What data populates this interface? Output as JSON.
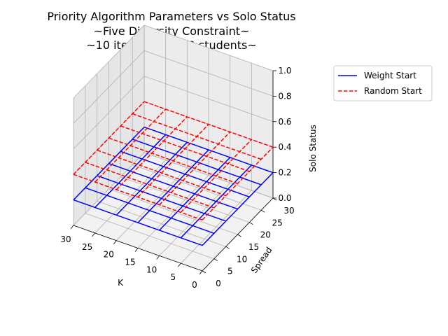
{
  "figure": {
    "title_lines": [
      "Priority Algorithm Parameters vs Solo Status",
      "~Five Diversity Constraint~",
      "~10 iterations, 120 students~"
    ]
  },
  "chart_data": {
    "type": "wireframe-3d",
    "title": "Priority Algorithm Parameters vs Solo Status\n~Five Diversity Constraint~\n~10 iterations, 120 students~",
    "xlabel": "K",
    "ylabel": "Spread",
    "zlabel": "Solo Status",
    "xlim": [
      0,
      30
    ],
    "ylim": [
      0,
      30
    ],
    "zlim": [
      0,
      1
    ],
    "xticks": [
      "0",
      "5",
      "10",
      "15",
      "20",
      "25",
      "30"
    ],
    "yticks": [
      "0",
      "5",
      "10",
      "15",
      "20",
      "25",
      "30"
    ],
    "zticks": [
      "0.0",
      "0.2",
      "0.4",
      "0.6",
      "0.8",
      "1.0"
    ],
    "grid": true,
    "legend_position": "outside-top-right",
    "x": [
      0,
      5,
      10,
      15,
      20,
      25,
      30
    ],
    "y": [
      0,
      5,
      10,
      15,
      20,
      25,
      30
    ],
    "series": [
      {
        "name": "Weight Start",
        "color": "#0000ff",
        "linestyle": "solid",
        "z": [
          [
            0.2,
            0.2,
            0.2,
            0.2,
            0.2,
            0.2,
            0.2
          ],
          [
            0.2,
            0.2,
            0.2,
            0.2,
            0.2,
            0.2,
            0.2
          ],
          [
            0.2,
            0.2,
            0.2,
            0.2,
            0.2,
            0.2,
            0.2
          ],
          [
            0.2,
            0.2,
            0.2,
            0.2,
            0.2,
            0.2,
            0.2
          ],
          [
            0.2,
            0.2,
            0.2,
            0.2,
            0.2,
            0.2,
            0.2
          ],
          [
            0.2,
            0.2,
            0.2,
            0.2,
            0.2,
            0.2,
            0.2
          ],
          [
            0.2,
            0.2,
            0.2,
            0.2,
            0.2,
            0.2,
            0.2
          ]
        ]
      },
      {
        "name": "Random Start",
        "color": "#ff0000",
        "linestyle": "dashed",
        "z": [
          [
            0.4,
            0.4,
            0.4,
            0.4,
            0.4,
            0.4,
            0.4
          ],
          [
            0.4,
            0.4,
            0.4,
            0.4,
            0.4,
            0.4,
            0.4
          ],
          [
            0.4,
            0.4,
            0.4,
            0.4,
            0.4,
            0.4,
            0.4
          ],
          [
            0.4,
            0.4,
            0.4,
            0.4,
            0.4,
            0.4,
            0.4
          ],
          [
            0.4,
            0.4,
            0.4,
            0.4,
            0.4,
            0.4,
            0.4
          ],
          [
            0.4,
            0.4,
            0.4,
            0.4,
            0.4,
            0.4,
            0.4
          ],
          [
            0.4,
            0.4,
            0.4,
            0.4,
            0.4,
            0.4,
            0.4
          ]
        ]
      }
    ]
  }
}
